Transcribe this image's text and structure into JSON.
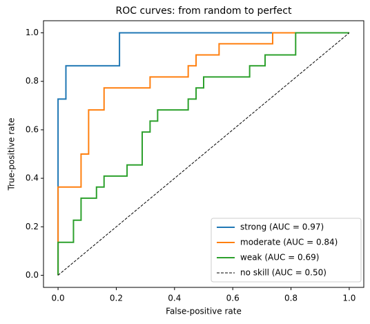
{
  "chart_data": {
    "type": "line",
    "title": "ROC curves: from random to perfect",
    "xlabel": "False-positive rate",
    "ylabel": "True-positive rate",
    "xlim": [
      -0.05,
      1.05
    ],
    "ylim": [
      -0.05,
      1.05
    ],
    "xticks": [
      {
        "value": 0,
        "label": "0.0"
      },
      {
        "value": 0.2,
        "label": "0.2"
      },
      {
        "value": 0.4,
        "label": "0.4"
      },
      {
        "value": 0.6,
        "label": "0.6"
      },
      {
        "value": 0.8,
        "label": "0.8"
      },
      {
        "value": 1,
        "label": "1.0"
      }
    ],
    "yticks": [
      {
        "value": 0,
        "label": "0.0"
      },
      {
        "value": 0.2,
        "label": "0.2"
      },
      {
        "value": 0.4,
        "label": "0.4"
      },
      {
        "value": 0.6,
        "label": "0.6"
      },
      {
        "value": 0.8,
        "label": "0.8"
      },
      {
        "value": 1,
        "label": "1.0"
      }
    ],
    "legend": "lower right",
    "series": [
      {
        "name": "strong (AUC = 0.97)",
        "color": "#1f77b4",
        "style": "solid",
        "x": [
          0,
          0,
          0.027,
          0.027,
          0.211,
          0.211,
          1
        ],
        "values": [
          0,
          0.727,
          0.727,
          0.864,
          0.864,
          1,
          1
        ]
      },
      {
        "name": "moderate (AUC = 0.84)",
        "color": "#ff7f0e",
        "style": "solid",
        "x": [
          0,
          0,
          0.079,
          0.079,
          0.105,
          0.105,
          0.158,
          0.158,
          0.316,
          0.316,
          0.447,
          0.447,
          0.474,
          0.474,
          0.553,
          0.553,
          0.737,
          0.737,
          1
        ],
        "values": [
          0,
          0.364,
          0.364,
          0.5,
          0.5,
          0.682,
          0.682,
          0.773,
          0.773,
          0.818,
          0.818,
          0.864,
          0.864,
          0.909,
          0.909,
          0.955,
          0.955,
          1,
          1
        ]
      },
      {
        "name": "weak (AUC = 0.69)",
        "color": "#2ca02c",
        "style": "solid",
        "x": [
          0,
          0,
          0.053,
          0.053,
          0.079,
          0.079,
          0.132,
          0.132,
          0.158,
          0.158,
          0.237,
          0.237,
          0.289,
          0.289,
          0.316,
          0.316,
          0.342,
          0.342,
          0.447,
          0.447,
          0.474,
          0.474,
          0.5,
          0.5,
          0.658,
          0.658,
          0.711,
          0.711,
          0.816,
          0.816,
          1
        ],
        "values": [
          0,
          0.136,
          0.136,
          0.227,
          0.227,
          0.318,
          0.318,
          0.364,
          0.364,
          0.409,
          0.409,
          0.455,
          0.455,
          0.591,
          0.591,
          0.636,
          0.636,
          0.682,
          0.682,
          0.727,
          0.727,
          0.773,
          0.773,
          0.818,
          0.818,
          0.864,
          0.864,
          0.909,
          0.909,
          1,
          1
        ]
      },
      {
        "name": "no skill (AUC = 0.50)",
        "color": "#000000",
        "style": "dashed",
        "x": [
          0,
          1
        ],
        "values": [
          0,
          1
        ]
      }
    ]
  }
}
